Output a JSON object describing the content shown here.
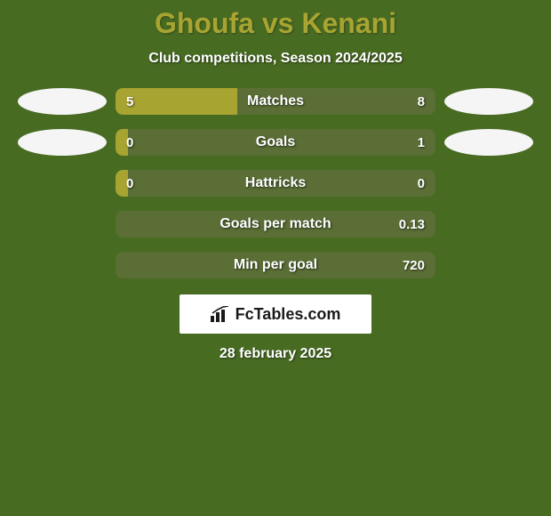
{
  "background_color": "#486b22",
  "title": {
    "text": "Ghoufa vs Kenani",
    "color": "#a8a432",
    "fontsize": 32,
    "fontweight": 900
  },
  "subtitle": {
    "text": "Club competitions, Season 2024/2025",
    "color": "#ffffff",
    "fontsize": 16
  },
  "colors": {
    "left_bar": "#a8a432",
    "right_bar": "#5a6e36",
    "ellipse": "#f5f5f5",
    "value_text": "#ffffff",
    "label_text": "#ffffff"
  },
  "stats": [
    {
      "label": "Matches",
      "left_val": "5",
      "right_val": "8",
      "left_pct": 38,
      "show_ellipses": true
    },
    {
      "label": "Goals",
      "left_val": "0",
      "right_val": "1",
      "left_pct": 4,
      "show_ellipses": true
    },
    {
      "label": "Hattricks",
      "left_val": "0",
      "right_val": "0",
      "left_pct": 4,
      "show_ellipses": false
    },
    {
      "label": "Goals per match",
      "left_val": "",
      "right_val": "0.13",
      "left_pct": 0,
      "show_ellipses": false
    },
    {
      "label": "Min per goal",
      "left_val": "",
      "right_val": "720",
      "left_pct": 0,
      "show_ellipses": false
    }
  ],
  "logo": {
    "text": "FcTables.com",
    "bg": "#ffffff",
    "text_color": "#1a1a1a"
  },
  "date": "28 february 2025"
}
